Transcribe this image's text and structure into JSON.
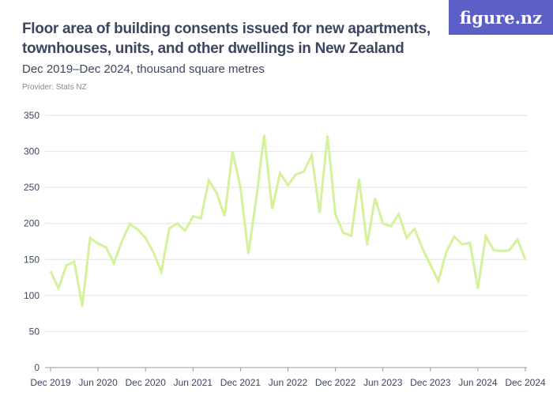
{
  "header": {
    "title": "Floor area of building consents issued for new apartments, townhouses, units, and other dwellings in New Zealand",
    "subtitle": "Dec 2019–Dec 2024, thousand square metres",
    "provider": "Provider: Stats NZ",
    "logo": "figure.nz"
  },
  "chart_data": {
    "type": "line",
    "title": "Floor area of building consents issued for new apartments, townhouses, units, and other dwellings in New Zealand",
    "subtitle": "Dec 2019–Dec 2024, thousand square metres",
    "ylim": [
      0,
      350
    ],
    "yticks": [
      0,
      50,
      100,
      150,
      200,
      250,
      300,
      350
    ],
    "xticks": [
      "Dec 2019",
      "Jun 2020",
      "Dec 2020",
      "Jun 2021",
      "Dec 2021",
      "Jun 2022",
      "Dec 2022",
      "Jun 2023",
      "Dec 2023",
      "Jun 2024",
      "Dec 2024"
    ],
    "x_start": "Dec 2019",
    "x_end": "Dec 2024",
    "frequency": "monthly",
    "grid": true,
    "line_color": "#d4f29a",
    "values": [
      134,
      110,
      142,
      147,
      85,
      180,
      172,
      167,
      145,
      175,
      199,
      192,
      180,
      160,
      133,
      193,
      200,
      190,
      210,
      207,
      260,
      242,
      210,
      300,
      250,
      158,
      235,
      323,
      220,
      270,
      253,
      268,
      272,
      295,
      215,
      322,
      212,
      187,
      183,
      262,
      170,
      235,
      200,
      196,
      213,
      180,
      193,
      165,
      143,
      120,
      160,
      182,
      171,
      173,
      110,
      182,
      163,
      162,
      163,
      178,
      150
    ]
  }
}
